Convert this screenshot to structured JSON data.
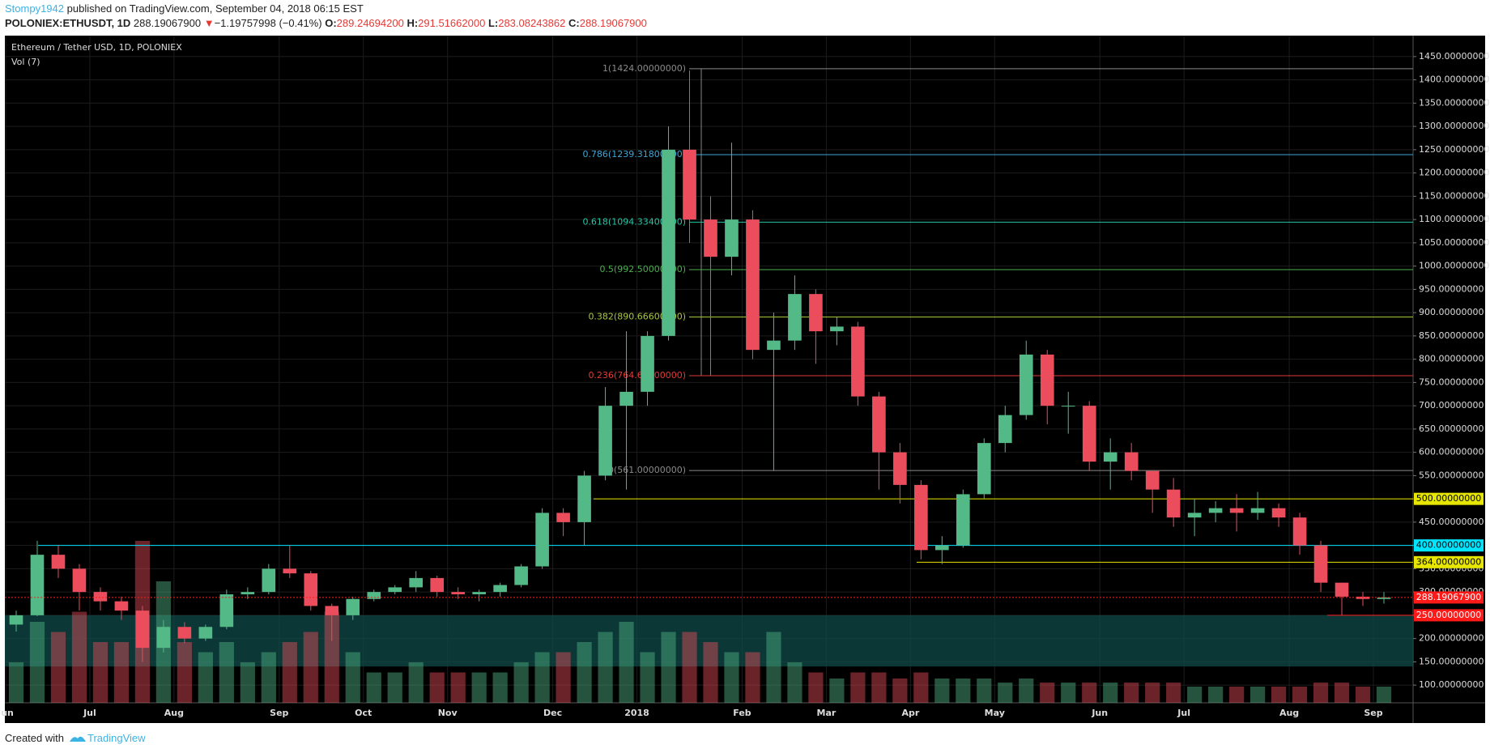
{
  "header": {
    "author": "Stompy1942",
    "published": "published on TradingView.com, September 04, 2018 06:15 EST",
    "symbol": "POLONIEX:ETHUSDT, 1D",
    "price": "288.19067900",
    "arrow": "▼",
    "change": "−1.19757998 (−0.41%)",
    "ohlc": [
      {
        "key": "O:",
        "value": "289.24694200"
      },
      {
        "key": "H:",
        "value": "291.51662000"
      },
      {
        "key": "L:",
        "value": "283.08243862"
      },
      {
        "key": "C:",
        "value": "288.19067900"
      }
    ]
  },
  "footer": {
    "created": "Created with",
    "brand": "TradingView"
  },
  "chart_data": {
    "type": "candlestick",
    "title": "Ethereum / Tether USD, 1D, POLONIEX",
    "volume_label": "Vol (7)",
    "categories": [
      "Jun",
      null,
      null,
      null,
      "Jul",
      null,
      null,
      null,
      "Aug",
      null,
      null,
      null,
      null,
      "Sep",
      null,
      null,
      null,
      "Oct",
      null,
      null,
      null,
      "Nov",
      null,
      null,
      null,
      null,
      "Dec",
      null,
      null,
      null,
      "2018",
      null,
      null,
      null,
      null,
      "Feb",
      null,
      null,
      null,
      "Mar",
      null,
      null,
      null,
      "Apr",
      null,
      null,
      null,
      "May",
      null,
      null,
      null,
      null,
      "Jun",
      null,
      null,
      null,
      "Jul",
      null,
      null,
      null,
      null,
      "Aug",
      null,
      null,
      null,
      "Sep"
    ],
    "open": [
      230,
      250,
      380,
      350,
      300,
      280,
      260,
      180,
      225,
      200,
      225,
      295,
      300,
      350,
      340,
      270,
      250,
      285,
      300,
      310,
      330,
      300,
      295,
      300,
      315,
      355,
      470,
      450,
      550,
      700,
      730,
      850,
      1250,
      1100,
      1020,
      1100,
      820,
      840,
      940,
      860,
      870,
      720,
      600,
      530,
      390,
      400,
      510,
      620,
      680,
      810,
      700,
      700,
      580,
      600,
      560,
      520,
      460,
      470,
      480,
      470,
      480,
      460,
      400,
      320,
      290,
      285
    ],
    "high": [
      260,
      410,
      400,
      360,
      310,
      290,
      270,
      240,
      235,
      230,
      305,
      310,
      360,
      400,
      345,
      275,
      290,
      305,
      315,
      345,
      335,
      310,
      305,
      320,
      360,
      480,
      480,
      560,
      740,
      860,
      860,
      1300,
      1420,
      1150,
      1265,
      1120,
      900,
      980,
      950,
      890,
      880,
      730,
      620,
      540,
      420,
      520,
      630,
      700,
      840,
      820,
      730,
      710,
      630,
      620,
      560,
      545,
      500,
      495,
      510,
      515,
      490,
      470,
      410,
      320,
      300,
      300
    ],
    "low": [
      215,
      248,
      330,
      260,
      260,
      240,
      150,
      170,
      190,
      195,
      220,
      285,
      295,
      330,
      260,
      195,
      240,
      280,
      295,
      300,
      290,
      285,
      280,
      290,
      310,
      350,
      420,
      400,
      540,
      520,
      700,
      840,
      1050,
      765,
      980,
      800,
      560,
      820,
      790,
      830,
      700,
      520,
      490,
      370,
      360,
      395,
      500,
      600,
      670,
      660,
      640,
      560,
      520,
      540,
      470,
      440,
      420,
      450,
      430,
      455,
      440,
      380,
      300,
      250,
      270,
      275
    ],
    "close": [
      250,
      380,
      350,
      300,
      280,
      260,
      180,
      225,
      200,
      225,
      295,
      300,
      350,
      340,
      270,
      250,
      285,
      300,
      310,
      330,
      300,
      295,
      300,
      315,
      355,
      470,
      450,
      550,
      700,
      730,
      850,
      1250,
      1100,
      1020,
      1100,
      820,
      840,
      940,
      860,
      870,
      720,
      600,
      530,
      390,
      400,
      510,
      620,
      680,
      810,
      700,
      700,
      580,
      600,
      560,
      520,
      460,
      470,
      480,
      470,
      480,
      460,
      400,
      320,
      290,
      285,
      288.190679
    ],
    "volume": [
      20,
      40,
      35,
      45,
      30,
      30,
      80,
      60,
      30,
      25,
      30,
      20,
      25,
      30,
      35,
      45,
      25,
      15,
      15,
      20,
      15,
      15,
      15,
      15,
      20,
      25,
      25,
      30,
      35,
      40,
      25,
      35,
      35,
      30,
      25,
      25,
      35,
      20,
      15,
      12,
      15,
      15,
      12,
      15,
      12,
      12,
      12,
      10,
      12,
      10,
      10,
      10,
      10,
      10,
      10,
      10,
      8,
      8,
      8,
      8,
      8,
      8,
      10,
      10,
      8,
      8
    ],
    "up_color": "#53b987",
    "down_color": "#eb4d5c",
    "ylim": [
      62,
      1495
    ],
    "yticks": [
      {
        "value": 100,
        "label": "100.00000000"
      },
      {
        "value": 150,
        "label": "150.00000000"
      },
      {
        "value": 200,
        "label": "200.00000000"
      },
      {
        "value": 250,
        "label": "250.00000000"
      },
      {
        "value": 300,
        "label": "300.00000000"
      },
      {
        "value": 350,
        "label": "350.00000000"
      },
      {
        "value": 400,
        "label": "400.00000000"
      },
      {
        "value": 450,
        "label": "450.00000000"
      },
      {
        "value": 500,
        "label": "500.00000000"
      },
      {
        "value": 550,
        "label": "550.00000000"
      },
      {
        "value": 600,
        "label": "600.00000000"
      },
      {
        "value": 650,
        "label": "650.00000000"
      },
      {
        "value": 700,
        "label": "700.00000000"
      },
      {
        "value": 750,
        "label": "750.00000000"
      },
      {
        "value": 800,
        "label": "800.00000000"
      },
      {
        "value": 850,
        "label": "850.00000000"
      },
      {
        "value": 900,
        "label": "900.00000000"
      },
      {
        "value": 950,
        "label": "950.00000000"
      },
      {
        "value": 1000,
        "label": "1000.00000000"
      },
      {
        "value": 1050,
        "label": "1050.00000000"
      },
      {
        "value": 1100,
        "label": "1100.00000000"
      },
      {
        "value": 1150,
        "label": "1150.00000000"
      },
      {
        "value": 1200,
        "label": "1200.00000000"
      },
      {
        "value": 1250,
        "label": "1250.00000000"
      },
      {
        "value": 1300,
        "label": "1300.00000000"
      },
      {
        "value": 1350,
        "label": "1350.00000000"
      },
      {
        "value": 1400,
        "label": "1400.00000000"
      },
      {
        "value": 1450,
        "label": "1450.00000000"
      }
    ],
    "grid": true,
    "zone": {
      "from": 140,
      "to": 250,
      "color": "#0f4a48"
    },
    "fib": {
      "levels": [
        {
          "value": 1424,
          "label": "1(1424.00000000)",
          "color": "#8a8a8a"
        },
        {
          "value": 1239.318,
          "label": "0.786(1239.31800000)",
          "color": "#3ea6d6"
        },
        {
          "value": 1094.334,
          "label": "0.618(1094.33400000)",
          "color": "#26c6a6"
        },
        {
          "value": 992.5,
          "label": "0.5(992.50000000)",
          "color": "#4caf50"
        },
        {
          "value": 890.666,
          "label": "0.382(890.66600000)",
          "color": "#a8c83c"
        },
        {
          "value": 764.668,
          "label": "0.236(764.66800000)",
          "color": "#e53935"
        },
        {
          "value": 561,
          "label": "0(561.00000000)",
          "color": "#8a8a8a"
        }
      ]
    },
    "hlines": [
      {
        "value": 500,
        "label": "500.00000000",
        "color": "#e6e600"
      },
      {
        "value": 400,
        "label": "400.00000000",
        "color": "#00e5ff"
      },
      {
        "value": 364,
        "label": "364.00000000",
        "color": "#e6e600"
      },
      {
        "value": 250,
        "label": "250.00000000",
        "color": "#ff1a1a"
      }
    ],
    "last": {
      "value": 288.190679,
      "label": "288.19067900",
      "color": "#ff1a1a"
    }
  }
}
